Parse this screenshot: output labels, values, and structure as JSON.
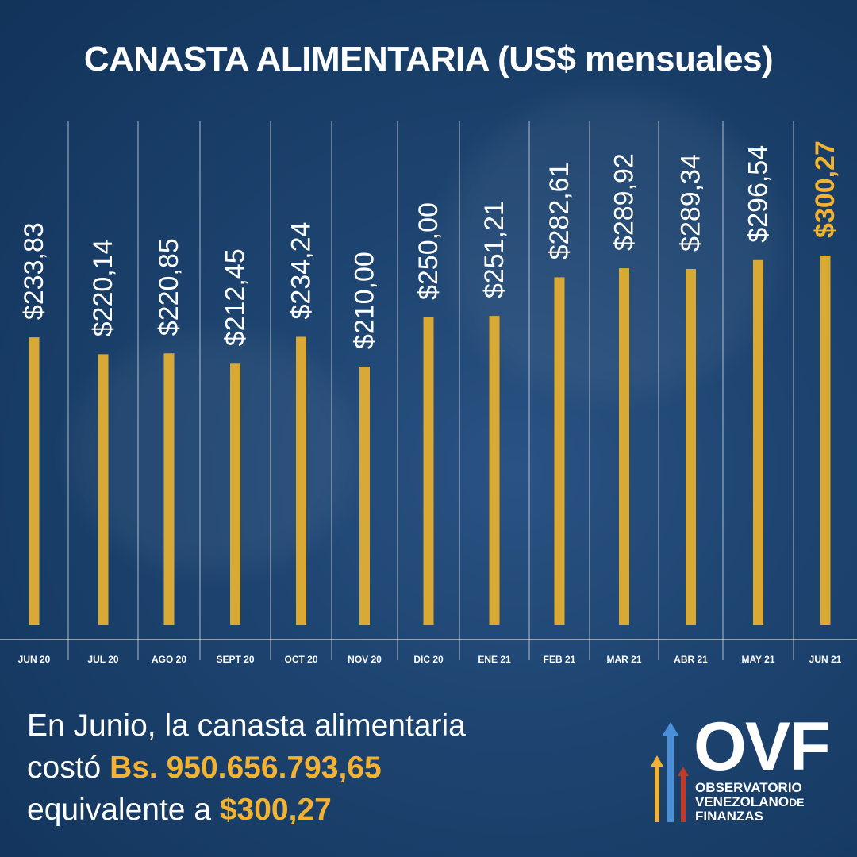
{
  "title": "CANASTA ALIMENTARIA (US$ mensuales)",
  "chart_data": {
    "type": "bar",
    "title": "CANASTA ALIMENTARIA (US$ mensuales)",
    "categories": [
      "JUN 20",
      "JUL 20",
      "AGO 20",
      "SEPT 20",
      "OCT 20",
      "NOV 20",
      "DIC 20",
      "ENE 21",
      "FEB 21",
      "MAR 21",
      "ABR 21",
      "MAY 21",
      "JUN 21"
    ],
    "values": [
      233.83,
      220.14,
      220.85,
      212.45,
      234.24,
      210.0,
      250.0,
      251.21,
      282.61,
      289.92,
      289.34,
      296.54,
      300.27
    ],
    "value_labels": [
      "$233,83",
      "$220,14",
      "$220,85",
      "$212,45",
      "$234,24",
      "$210,00",
      "$250,00",
      "$251,21",
      "$282,61",
      "$289,92",
      "$289,34",
      "$296,54",
      "$300,27"
    ],
    "highlight_index": 12,
    "ylim": [
      0,
      300.27
    ],
    "xlabel": "",
    "ylabel": "",
    "grid": "vertical separators",
    "bar_color": "#d9a936",
    "label_color": "#ffffff",
    "highlight_label_color": "#f2b233"
  },
  "footer": {
    "line1": "En Junio, la canasta alimentaria",
    "line2_prefix": "costó ",
    "line2_value": "Bs. 950.656.793,65",
    "line3_prefix": "equivalente a ",
    "line3_value": "$300,27"
  },
  "logo": {
    "acronym": "OVF",
    "line1": "OBSERVATORIO",
    "line2": "VENEZOLANO",
    "line2_suffix": "DE",
    "line3": "FINANZAS",
    "arrow_colors": [
      "#4a90d9",
      "#f2b233",
      "#c0392b"
    ]
  },
  "colors": {
    "background": "#1d4470",
    "accent": "#f2b233"
  }
}
